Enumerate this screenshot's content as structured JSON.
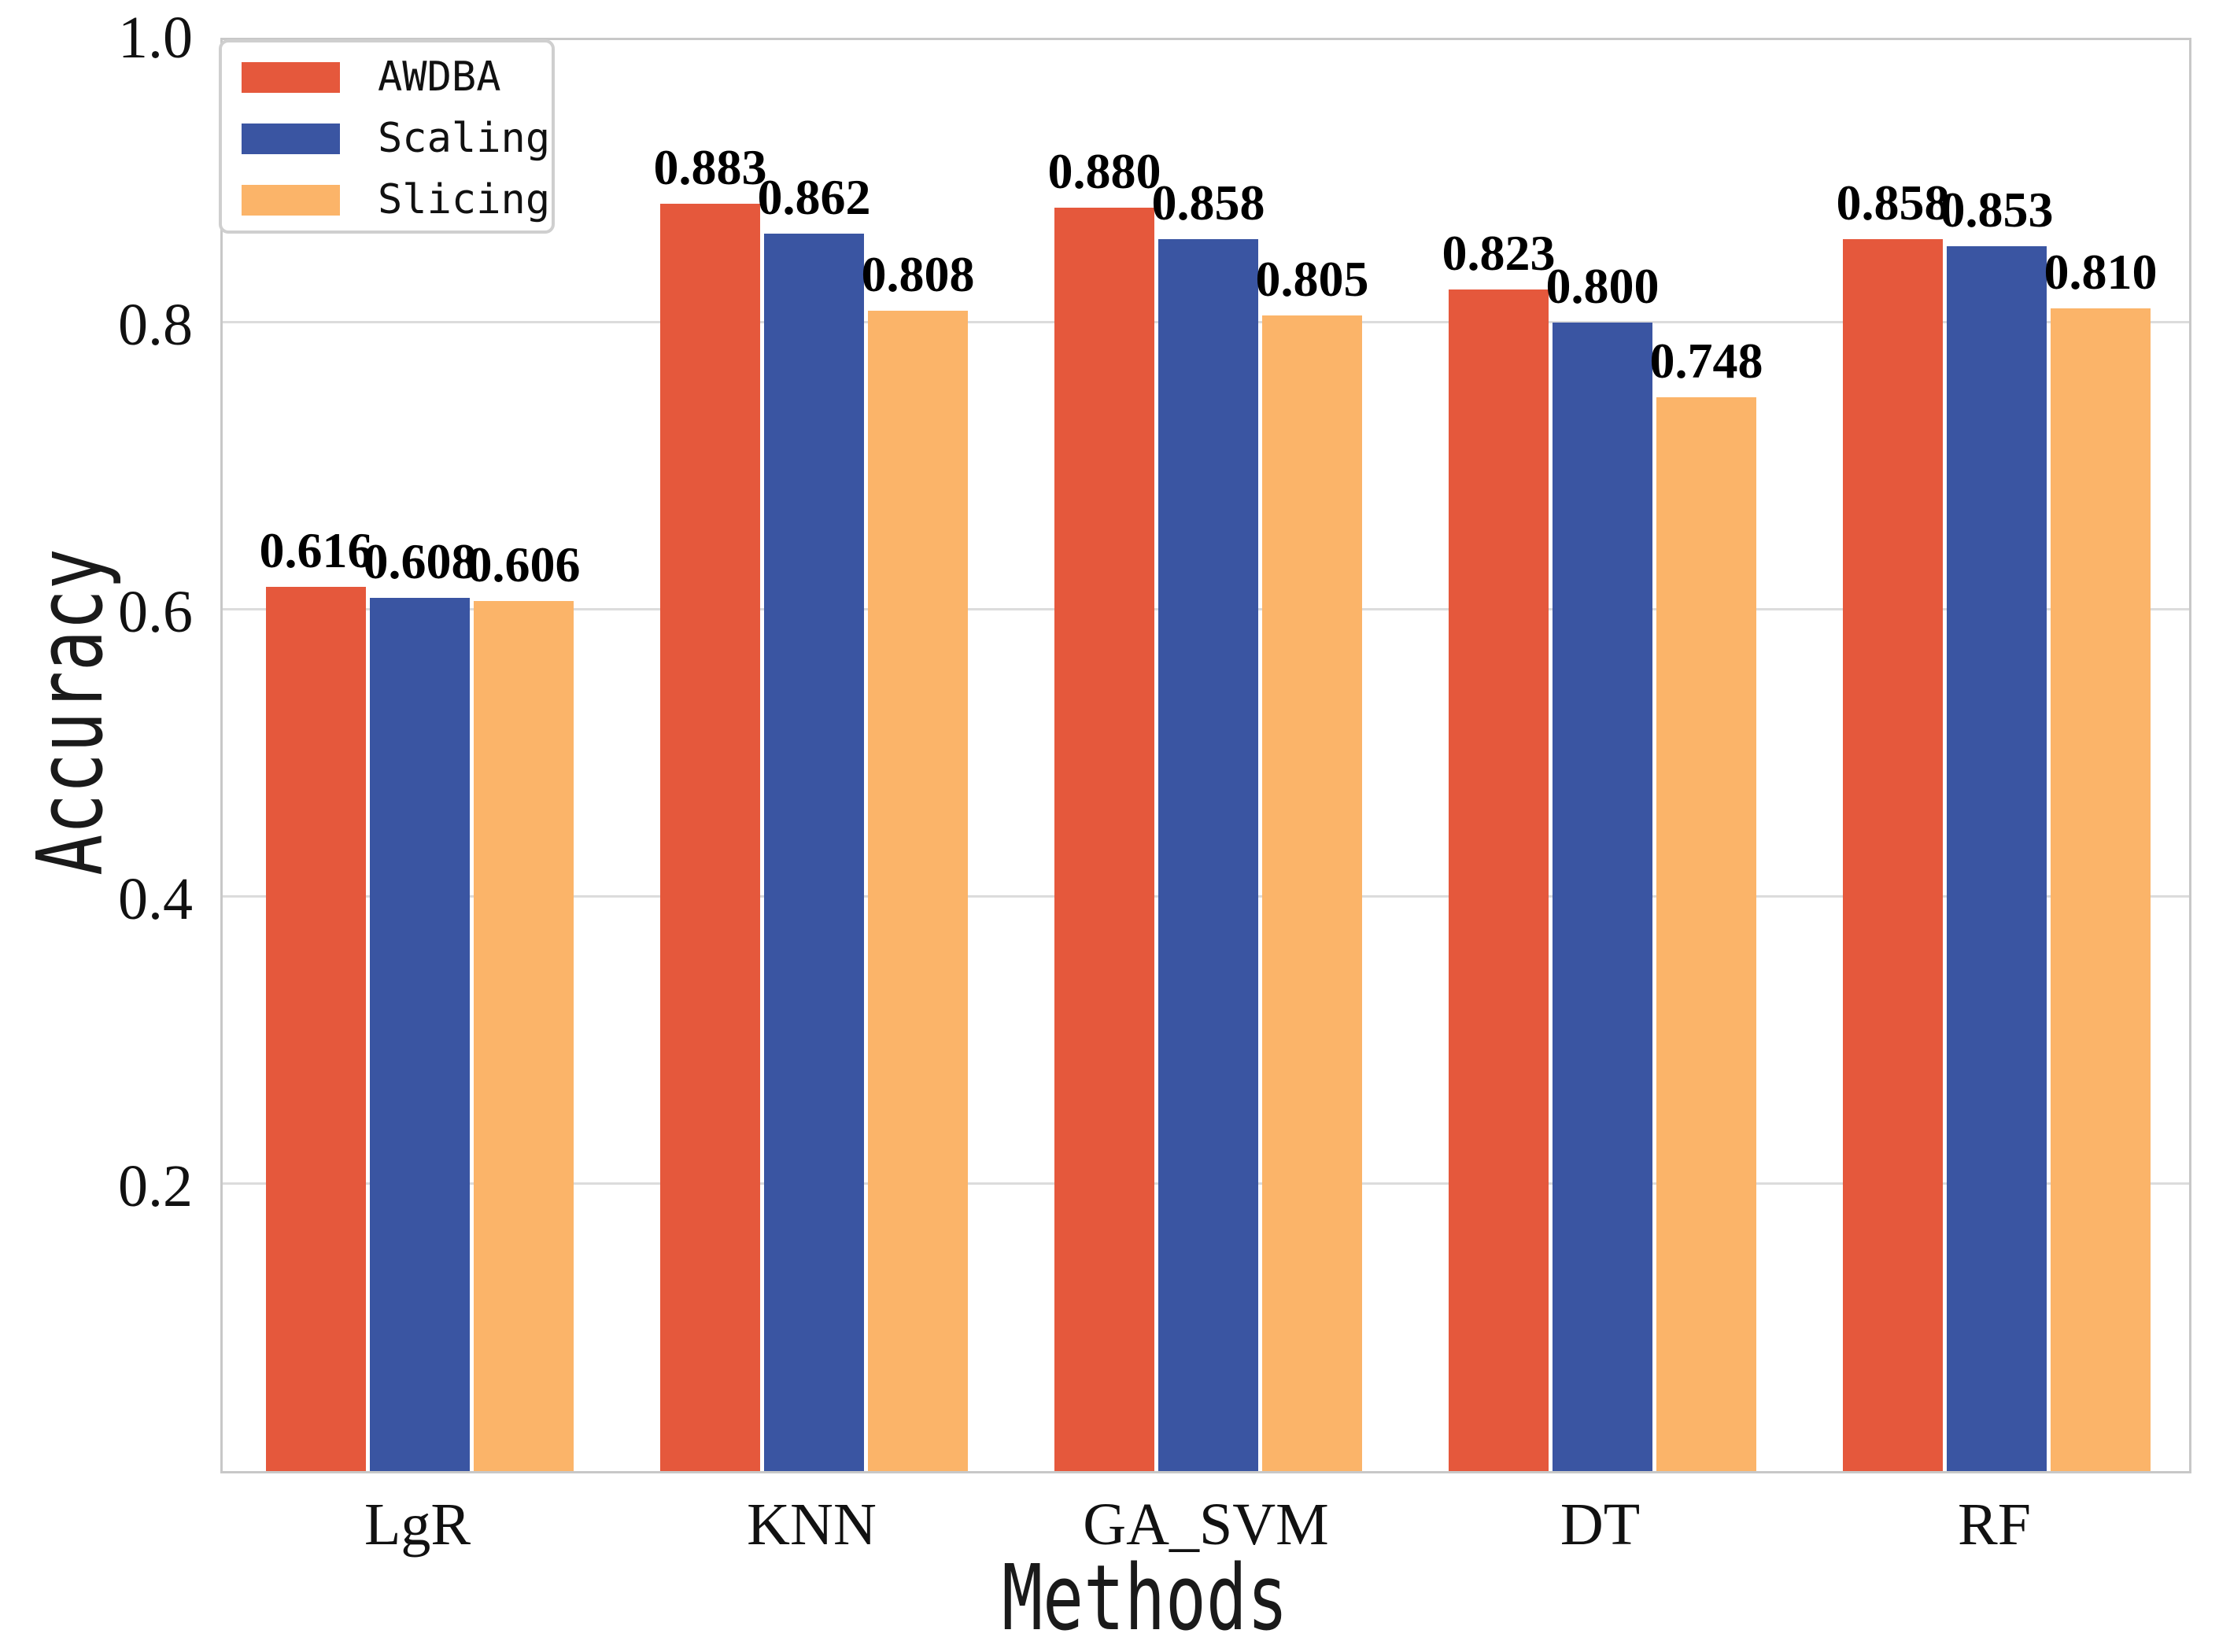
{
  "chart_data": {
    "type": "bar",
    "title": "",
    "xlabel": "Methods",
    "ylabel": "Accuracy",
    "categories": [
      "LgR",
      "KNN",
      "GA_SVM",
      "DT",
      "RF"
    ],
    "series": [
      {
        "name": "AWDBA",
        "color": "#e5583c",
        "values": [
          0.616,
          0.883,
          0.88,
          0.823,
          0.858
        ]
      },
      {
        "name": "Scaling",
        "color": "#3a55a2",
        "values": [
          0.608,
          0.862,
          0.858,
          0.8,
          0.853
        ]
      },
      {
        "name": "Slicing",
        "color": "#fbb469",
        "values": [
          0.606,
          0.808,
          0.805,
          0.748,
          0.81
        ]
      }
    ],
    "ylim": [
      0.0,
      1.0
    ],
    "ytick_values": [
      1.0,
      0.8,
      0.6,
      0.4,
      0.2
    ],
    "value_label_decimals": 3,
    "grid": true,
    "legend_position": "upper-left",
    "colors": {
      "gridline": "#dcdcdc",
      "spine": "#c8c8c8",
      "legend_border": "#cfcfcf",
      "text": "#111111",
      "value_label": "#000000"
    }
  }
}
